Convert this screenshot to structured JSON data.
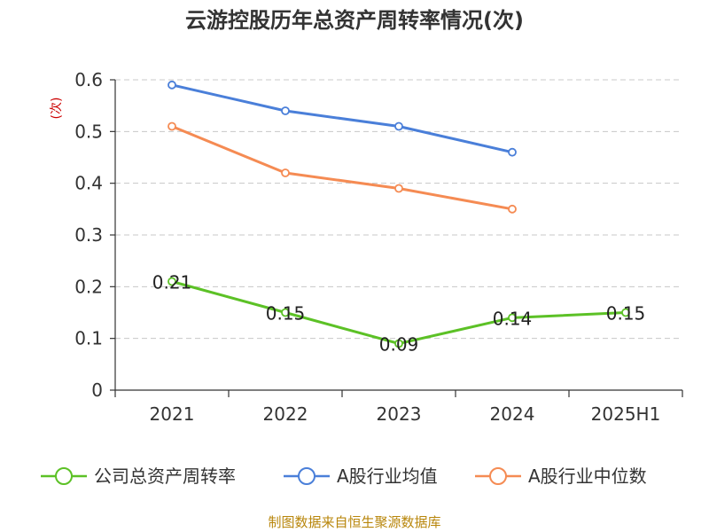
{
  "chart_data": {
    "type": "line",
    "title": "云游控股历年总资产周转率情况(次)",
    "ylabel": "(次)",
    "xlabel": "",
    "categories": [
      "2021",
      "2022",
      "2023",
      "2024",
      "2025H1"
    ],
    "ylim": [
      0,
      0.6
    ],
    "yticks": [
      "0",
      "0.1",
      "0.2",
      "0.3",
      "0.4",
      "0.5",
      "0.6"
    ],
    "grid": true,
    "legend_position": "bottom",
    "series": [
      {
        "name": "公司总资产周转率",
        "color": "#5cc126",
        "values": [
          0.21,
          0.15,
          0.09,
          0.14,
          0.15
        ],
        "data_labels": [
          "0.21",
          "0.15",
          "0.09",
          "0.14",
          "0.15"
        ]
      },
      {
        "name": "A股行业均值",
        "color": "#4a7fd9",
        "values": [
          0.59,
          0.54,
          0.51,
          0.46,
          null
        ]
      },
      {
        "name": "A股行业中位数",
        "color": "#f58b53",
        "values": [
          0.51,
          0.42,
          0.39,
          0.35,
          null
        ]
      }
    ]
  },
  "footer": {
    "source": "制图数据来自恒生聚源数据库"
  }
}
